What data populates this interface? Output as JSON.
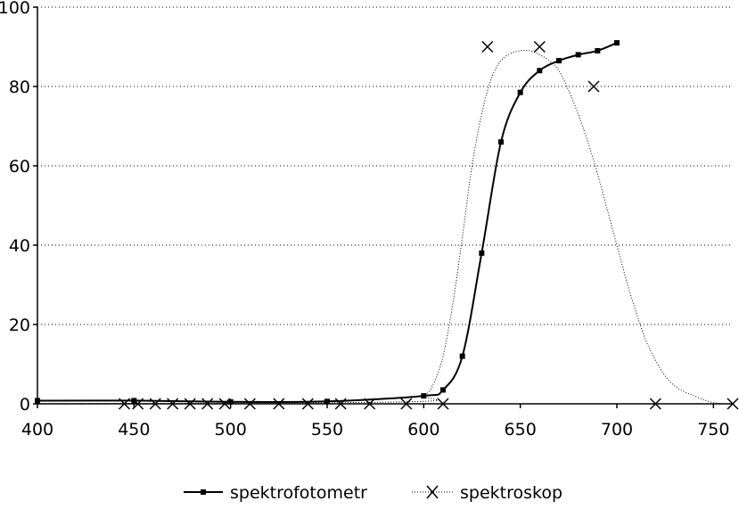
{
  "chart_data": {
    "type": "line",
    "title": "",
    "xlabel": "",
    "ylabel": "",
    "xlim": [
      400,
      760
    ],
    "ylim": [
      0,
      100
    ],
    "x_ticks": [
      "400",
      "450",
      "500",
      "550",
      "600",
      "650",
      "700",
      "750"
    ],
    "y_ticks": [
      "0",
      "20",
      "40",
      "60",
      "80",
      "100"
    ],
    "grid": {
      "horizontal": true,
      "style": "dotted"
    },
    "legend_position": "bottom",
    "series": [
      {
        "name": "spektrofotometr",
        "marker": "square",
        "line": "solid",
        "color": "#000000",
        "points": [
          [
            400,
            0.8
          ],
          [
            450,
            0.8
          ],
          [
            500,
            0.5
          ],
          [
            550,
            0.6
          ],
          [
            600,
            2.0
          ],
          [
            610,
            3.5
          ],
          [
            620,
            12.0
          ],
          [
            630,
            38.0
          ],
          [
            640,
            66.0
          ],
          [
            650,
            78.5
          ],
          [
            660,
            84.0
          ],
          [
            670,
            86.5
          ],
          [
            680,
            88.0
          ],
          [
            690,
            89.0
          ],
          [
            700,
            91.0
          ]
        ]
      },
      {
        "name": "spektroskop",
        "marker": "x",
        "line": "dotted",
        "color": "#000000",
        "points": [
          [
            445,
            0
          ],
          [
            452,
            0
          ],
          [
            461,
            0
          ],
          [
            470,
            0
          ],
          [
            479,
            0
          ],
          [
            488,
            0
          ],
          [
            497,
            0
          ],
          [
            510,
            0
          ],
          [
            525,
            0
          ],
          [
            540,
            0
          ],
          [
            557,
            0
          ],
          [
            572,
            0
          ],
          [
            591,
            0
          ],
          [
            610,
            0
          ],
          [
            633,
            90
          ],
          [
            660,
            90
          ],
          [
            688,
            80
          ],
          [
            720,
            0
          ],
          [
            760,
            0
          ]
        ],
        "curve": [
          [
            400,
            0
          ],
          [
            590,
            0.5
          ],
          [
            600,
            2
          ],
          [
            605,
            5
          ],
          [
            610,
            12
          ],
          [
            615,
            25
          ],
          [
            620,
            42
          ],
          [
            625,
            60
          ],
          [
            630,
            73
          ],
          [
            635,
            82
          ],
          [
            640,
            86.5
          ],
          [
            645,
            88.3
          ],
          [
            650,
            89
          ],
          [
            655,
            89
          ],
          [
            660,
            88
          ],
          [
            665,
            86.5
          ],
          [
            670,
            84
          ],
          [
            675,
            79
          ],
          [
            680,
            73
          ],
          [
            685,
            66
          ],
          [
            690,
            58
          ],
          [
            695,
            49
          ],
          [
            700,
            40
          ],
          [
            705,
            31
          ],
          [
            710,
            23
          ],
          [
            715,
            16
          ],
          [
            720,
            11
          ],
          [
            725,
            7
          ],
          [
            730,
            4.5
          ],
          [
            735,
            3
          ],
          [
            740,
            2
          ],
          [
            745,
            1
          ],
          [
            750,
            0.3
          ],
          [
            755,
            0
          ],
          [
            760,
            0
          ]
        ]
      }
    ]
  }
}
